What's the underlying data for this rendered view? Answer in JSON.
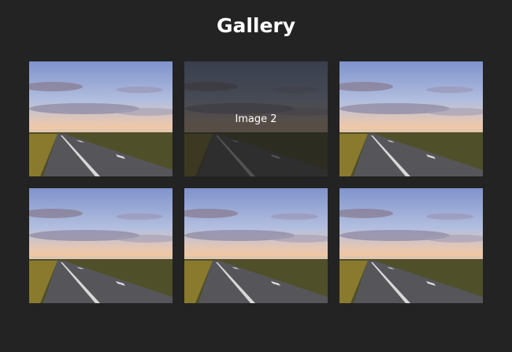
{
  "header": {
    "title": "Gallery"
  },
  "gallery": {
    "items": [
      {
        "caption": "Image 2"
      }
    ]
  }
}
